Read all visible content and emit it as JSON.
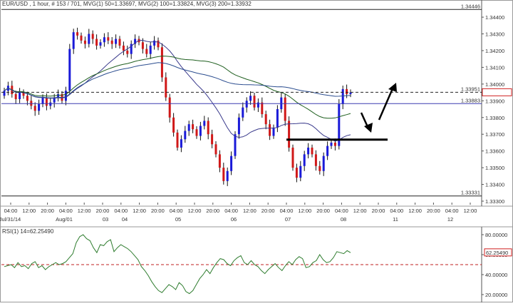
{
  "chart_data": [
    {
      "type": "candlestick",
      "header": "EUR/USD , 1 hour, # 153 / 701, MVG(1) 50=1.33697, MVG(2) 100=1.33824, MVG(3) 200=1.33932",
      "ylim": [
        1.333,
        1.3446
      ],
      "yticks": [
        "1.34400",
        "1.34300",
        "1.34200",
        "1.34100",
        "1.34000",
        "1.33900",
        "1.33800",
        "1.33700",
        "1.33600",
        "1.33500",
        "1.33400",
        "1.33300"
      ],
      "yticks_values": [
        1.344,
        1.343,
        1.342,
        1.341,
        1.34,
        1.339,
        1.338,
        1.337,
        1.336,
        1.335,
        1.334,
        1.333
      ],
      "level_labels": [
        {
          "label": "1.34446",
          "value": 1.34446,
          "style": "solid"
        },
        {
          "label": "1.33951",
          "value": 1.33951,
          "style": "dashed",
          "boxed": true
        },
        {
          "label": "1.33883",
          "value": 1.33883,
          "style": "solid-blue"
        },
        {
          "label": "1.33331",
          "value": 1.33331,
          "style": "solid"
        }
      ],
      "support_line": {
        "value": 1.33668,
        "x_from": "07 04:00",
        "x_to": "08 20:00"
      },
      "arrows": [
        "up",
        "down"
      ],
      "xticks": [
        "04:00",
        "12:00",
        "20:00",
        "04:00",
        "12:00",
        "20:00",
        "04:00",
        "12:00",
        "20:00",
        "04:00",
        "12:00",
        "20:00",
        "04:00",
        "12:00",
        "20:00",
        "04:00",
        "12:00",
        "20:00",
        "04:00",
        "12:00",
        "20:00",
        "04:00",
        "12:00",
        "20:00",
        "04:00",
        "12:00"
      ],
      "date_labels": [
        "Jul/31/14",
        "Aug/01",
        "03",
        "04",
        "05",
        "06",
        "07",
        "08",
        "11",
        "12"
      ],
      "series": [
        {
          "name": "MVG(1) 50",
          "value": 1.33697,
          "color": "#3a3a8c"
        },
        {
          "name": "MVG(2) 100",
          "value": 1.33824,
          "color": "#1f5f1f"
        },
        {
          "name": "MVG(3) 200",
          "value": 1.33932,
          "color": "#2b4d8f"
        }
      ],
      "candles_close_approx": [
        1.3396,
        1.3399,
        1.3394,
        1.3391,
        1.3395,
        1.3393,
        1.339,
        1.3387,
        1.3384,
        1.3388,
        1.3392,
        1.3387,
        1.3389,
        1.3392,
        1.3394,
        1.339,
        1.3396,
        1.3421,
        1.3431,
        1.3429,
        1.3426,
        1.3424,
        1.343,
        1.3427,
        1.3423,
        1.3425,
        1.3428,
        1.3426,
        1.3424,
        1.3427,
        1.3423,
        1.342,
        1.3418,
        1.3424,
        1.3427,
        1.3425,
        1.3421,
        1.3418,
        1.3423,
        1.3426,
        1.3422,
        1.3404,
        1.3392,
        1.338,
        1.3371,
        1.3362,
        1.3367,
        1.3372,
        1.3376,
        1.3373,
        1.3369,
        1.3375,
        1.3378,
        1.337,
        1.3364,
        1.3358,
        1.335,
        1.3342,
        1.3348,
        1.3357,
        1.337,
        1.338,
        1.3386,
        1.339,
        1.3393,
        1.3386,
        1.3389,
        1.3382,
        1.3376,
        1.3369,
        1.3374,
        1.3385,
        1.3392,
        1.3378,
        1.3362,
        1.335,
        1.3344,
        1.3351,
        1.3358,
        1.3362,
        1.3358,
        1.3351,
        1.3348,
        1.3357,
        1.3363,
        1.3365,
        1.3363,
        1.3388,
        1.3397,
        1.3394,
        1.3395
      ]
    },
    {
      "type": "line",
      "header": "RSI(1) 14=62.25490",
      "ylim": [
        15,
        85
      ],
      "yticks": [
        "80.00000",
        "60.00000",
        "40.00000",
        "20.00000"
      ],
      "yticks_values": [
        80,
        60,
        40,
        20
      ],
      "current_label": "62.25490",
      "reference_level": 50,
      "series": [
        {
          "name": "RSI(1) 14",
          "color": "#2f7d2f",
          "values": [
            48,
            49,
            50,
            47,
            52,
            48,
            49,
            46,
            51,
            53,
            47,
            49,
            45,
            48,
            50,
            52,
            50,
            51,
            53,
            57,
            61,
            72,
            78,
            80,
            76,
            74,
            67,
            62,
            70,
            69,
            73,
            75,
            63,
            67,
            70,
            68,
            66,
            63,
            59,
            55,
            48,
            44,
            39,
            33,
            28,
            24,
            22,
            26,
            30,
            28,
            25,
            32,
            29,
            23,
            21,
            24,
            30,
            36,
            40,
            45,
            41,
            47,
            52,
            56,
            55,
            51,
            49,
            54,
            57,
            59,
            52,
            50,
            54,
            50,
            48,
            44,
            41,
            45,
            48,
            51,
            47,
            44,
            49,
            53,
            50,
            55,
            58,
            56,
            47,
            48,
            52,
            54,
            60,
            55,
            52,
            53,
            57,
            63,
            62,
            61,
            64,
            62
          ]
        }
      ]
    }
  ]
}
